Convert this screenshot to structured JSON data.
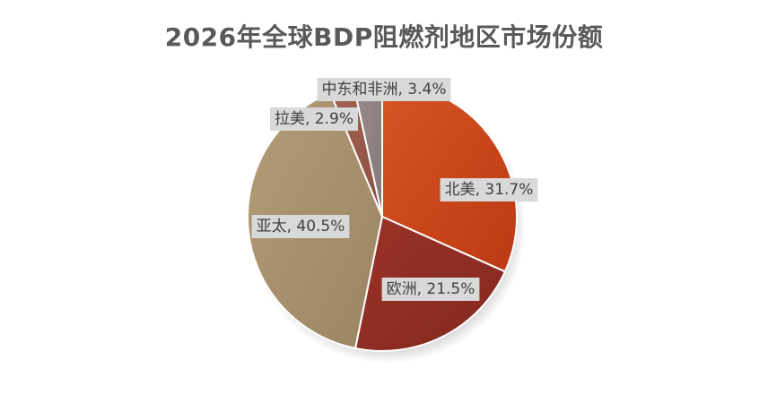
{
  "chart_data": {
    "type": "pie",
    "title": "2026年全球BDP阻燃剂地区市场份额",
    "categories": [
      "北美",
      "欧洲",
      "亚太",
      "拉美",
      "中东和非洲"
    ],
    "values": [
      31.7,
      21.5,
      40.5,
      2.9,
      3.4
    ],
    "labels": [
      "北美, 31.7%",
      "欧洲, 21.5%",
      "亚太, 40.5%",
      "拉美, 2.9%",
      "中东和非洲, 3.4%"
    ],
    "colors": [
      "#c9451a",
      "#8f2e25",
      "#a8906c",
      "#9a5a4a",
      "#8e8283"
    ],
    "legend": "none"
  }
}
